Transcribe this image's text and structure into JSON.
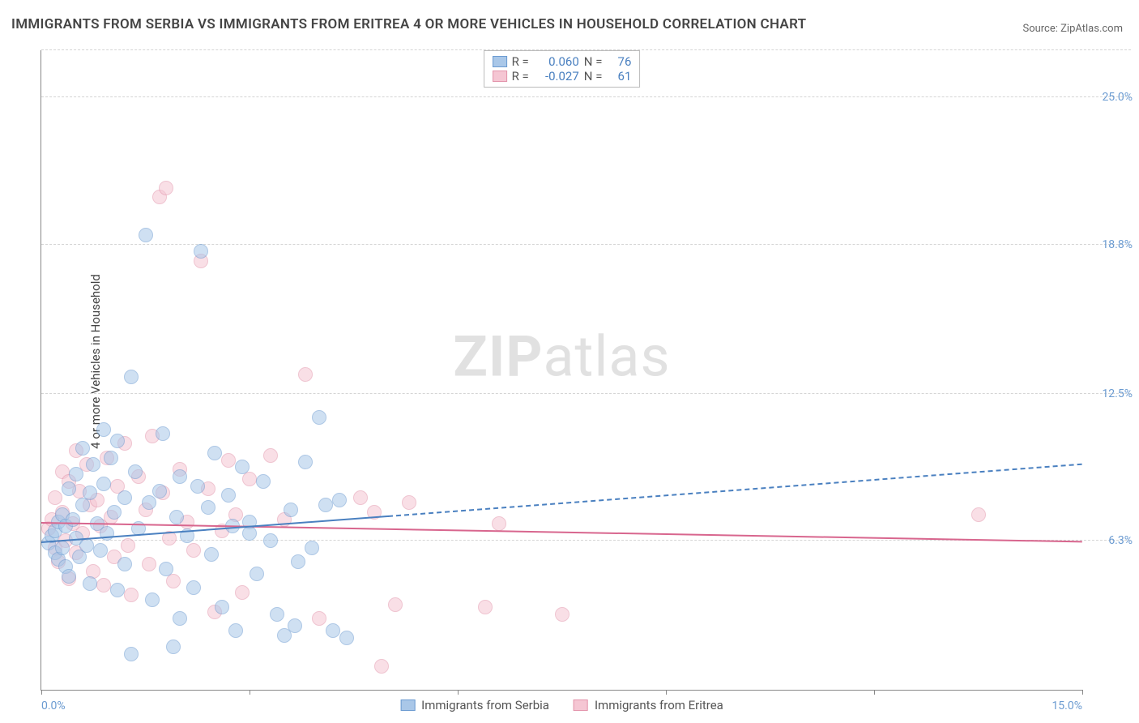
{
  "title": "IMMIGRANTS FROM SERBIA VS IMMIGRANTS FROM ERITREA 4 OR MORE VEHICLES IN HOUSEHOLD CORRELATION CHART",
  "source": "Source: ZipAtlas.com",
  "y_axis_label": "4 or more Vehicles in Household",
  "watermark_a": "ZIP",
  "watermark_b": "atlas",
  "colors": {
    "series1_fill": "#a9c7e8",
    "series1_stroke": "#6b9bd1",
    "series2_fill": "#f5c6d3",
    "series2_stroke": "#e394ab",
    "trend1": "#4a80c0",
    "trend2": "#d8668e",
    "tick_label": "#6b9bd1",
    "grid": "#d5d5d5"
  },
  "chart": {
    "type": "scatter",
    "xlim": [
      0,
      15
    ],
    "ylim": [
      0,
      27
    ],
    "x_ticks": [
      0,
      3,
      6,
      9,
      12,
      15
    ],
    "x_tick_labels": [
      "0.0%",
      "",
      "",
      "",
      "",
      "15.0%"
    ],
    "y_grid": [
      6.3,
      12.5,
      18.8,
      25.0
    ],
    "y_labels": [
      "6.3%",
      "12.5%",
      "18.8%",
      "25.0%"
    ],
    "point_radius": 9,
    "point_opacity": 0.55,
    "series1": {
      "name": "Immigrants from Serbia",
      "R": "0.060",
      "N": "76",
      "trend": {
        "y_at_x0": 6.2,
        "y_at_x5": 7.3,
        "y_at_x15": 9.5
      },
      "points": [
        [
          0.1,
          6.2
        ],
        [
          0.15,
          6.5
        ],
        [
          0.2,
          5.8
        ],
        [
          0.2,
          6.7
        ],
        [
          0.25,
          7.1
        ],
        [
          0.25,
          5.5
        ],
        [
          0.3,
          6.0
        ],
        [
          0.3,
          7.4
        ],
        [
          0.35,
          5.2
        ],
        [
          0.35,
          6.9
        ],
        [
          0.4,
          8.5
        ],
        [
          0.4,
          4.8
        ],
        [
          0.45,
          7.2
        ],
        [
          0.5,
          6.4
        ],
        [
          0.5,
          9.1
        ],
        [
          0.55,
          5.6
        ],
        [
          0.6,
          7.8
        ],
        [
          0.6,
          10.2
        ],
        [
          0.65,
          6.1
        ],
        [
          0.7,
          8.3
        ],
        [
          0.7,
          4.5
        ],
        [
          0.75,
          9.5
        ],
        [
          0.8,
          7.0
        ],
        [
          0.85,
          5.9
        ],
        [
          0.9,
          8.7
        ],
        [
          0.9,
          11.0
        ],
        [
          0.95,
          6.6
        ],
        [
          1.0,
          9.8
        ],
        [
          1.05,
          7.5
        ],
        [
          1.1,
          4.2
        ],
        [
          1.1,
          10.5
        ],
        [
          1.2,
          8.1
        ],
        [
          1.2,
          5.3
        ],
        [
          1.3,
          13.2
        ],
        [
          1.35,
          9.2
        ],
        [
          1.4,
          6.8
        ],
        [
          1.5,
          19.2
        ],
        [
          1.55,
          7.9
        ],
        [
          1.6,
          3.8
        ],
        [
          1.7,
          8.4
        ],
        [
          1.75,
          10.8
        ],
        [
          1.8,
          5.1
        ],
        [
          1.9,
          1.8
        ],
        [
          1.95,
          7.3
        ],
        [
          2.0,
          9.0
        ],
        [
          2.1,
          6.5
        ],
        [
          2.2,
          4.3
        ],
        [
          2.25,
          8.6
        ],
        [
          2.3,
          18.5
        ],
        [
          2.4,
          7.7
        ],
        [
          2.45,
          5.7
        ],
        [
          2.5,
          10.0
        ],
        [
          2.6,
          3.5
        ],
        [
          2.7,
          8.2
        ],
        [
          2.75,
          6.9
        ],
        [
          2.8,
          2.5
        ],
        [
          2.9,
          9.4
        ],
        [
          3.0,
          7.1
        ],
        [
          3.0,
          6.6
        ],
        [
          3.1,
          4.9
        ],
        [
          3.2,
          8.8
        ],
        [
          3.3,
          6.3
        ],
        [
          3.4,
          3.2
        ],
        [
          3.5,
          2.3
        ],
        [
          3.6,
          7.6
        ],
        [
          3.65,
          2.7
        ],
        [
          3.7,
          5.4
        ],
        [
          3.8,
          9.6
        ],
        [
          3.9,
          6.0
        ],
        [
          4.0,
          11.5
        ],
        [
          4.1,
          7.8
        ],
        [
          4.2,
          2.5
        ],
        [
          4.3,
          8.0
        ],
        [
          4.4,
          2.2
        ],
        [
          1.3,
          1.5
        ],
        [
          2.0,
          3.0
        ]
      ]
    },
    "series2": {
      "name": "Immigrants from Eritrea",
      "R": "-0.027",
      "N": "61",
      "trend": {
        "y_at_x0": 7.0,
        "y_at_x15": 6.2
      },
      "points": [
        [
          0.1,
          6.8
        ],
        [
          0.15,
          7.2
        ],
        [
          0.2,
          6.0
        ],
        [
          0.2,
          8.1
        ],
        [
          0.25,
          5.4
        ],
        [
          0.3,
          7.5
        ],
        [
          0.3,
          9.2
        ],
        [
          0.35,
          6.3
        ],
        [
          0.4,
          8.8
        ],
        [
          0.4,
          4.7
        ],
        [
          0.45,
          7.0
        ],
        [
          0.5,
          10.1
        ],
        [
          0.5,
          5.8
        ],
        [
          0.55,
          8.4
        ],
        [
          0.6,
          6.6
        ],
        [
          0.65,
          9.5
        ],
        [
          0.7,
          7.8
        ],
        [
          0.75,
          5.0
        ],
        [
          0.8,
          8.0
        ],
        [
          0.85,
          6.9
        ],
        [
          0.9,
          4.4
        ],
        [
          0.95,
          9.8
        ],
        [
          1.0,
          7.3
        ],
        [
          1.05,
          5.6
        ],
        [
          1.1,
          8.6
        ],
        [
          1.2,
          10.4
        ],
        [
          1.25,
          6.1
        ],
        [
          1.3,
          4.0
        ],
        [
          1.4,
          9.0
        ],
        [
          1.5,
          7.6
        ],
        [
          1.55,
          5.3
        ],
        [
          1.6,
          10.7
        ],
        [
          1.7,
          20.8
        ],
        [
          1.75,
          8.3
        ],
        [
          1.8,
          21.2
        ],
        [
          1.85,
          6.4
        ],
        [
          1.9,
          4.6
        ],
        [
          2.0,
          9.3
        ],
        [
          2.1,
          7.1
        ],
        [
          2.2,
          5.9
        ],
        [
          2.3,
          18.1
        ],
        [
          2.4,
          8.5
        ],
        [
          2.5,
          3.3
        ],
        [
          2.6,
          6.7
        ],
        [
          2.7,
          9.7
        ],
        [
          2.8,
          7.4
        ],
        [
          2.9,
          4.1
        ],
        [
          3.0,
          8.9
        ],
        [
          3.3,
          9.9
        ],
        [
          3.5,
          7.2
        ],
        [
          3.8,
          13.3
        ],
        [
          4.0,
          3.0
        ],
        [
          4.6,
          8.1
        ],
        [
          4.8,
          7.5
        ],
        [
          4.9,
          1.0
        ],
        [
          5.1,
          3.6
        ],
        [
          5.3,
          7.9
        ],
        [
          6.4,
          3.5
        ],
        [
          6.6,
          7.0
        ],
        [
          7.5,
          3.2
        ],
        [
          13.5,
          7.4
        ]
      ]
    }
  },
  "legend_labels": {
    "r": "R =",
    "n": "N ="
  }
}
